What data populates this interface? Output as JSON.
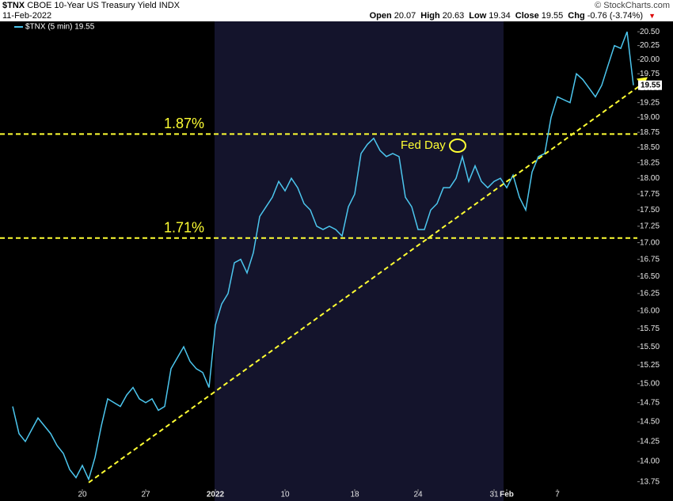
{
  "header": {
    "symbol": "$TNX",
    "name": "CBOE 10-Year US Treasury Yield INDX",
    "date": "11-Feb-2022",
    "copyright": "© StockCharts.com",
    "quote": [
      {
        "label": "Open",
        "value": "20.07"
      },
      {
        "label": "High",
        "value": "20.63"
      },
      {
        "label": "Low",
        "value": "19.34"
      },
      {
        "label": "Close",
        "value": "19.55"
      },
      {
        "label": "Chg",
        "value": "-0.76 (-3.74%)"
      }
    ]
  },
  "chart_data": {
    "type": "line",
    "categories": [
      null,
      null,
      null,
      null,
      null,
      null,
      null,
      null,
      null,
      null,
      null,
      "20",
      null,
      null,
      null,
      null,
      null,
      null,
      null,
      null,
      null,
      "27",
      null,
      null,
      null,
      null,
      null,
      null,
      null,
      null,
      null,
      null,
      "2022",
      null,
      null,
      null,
      null,
      null,
      null,
      null,
      null,
      null,
      null,
      "10",
      null,
      null,
      null,
      null,
      null,
      null,
      null,
      null,
      null,
      null,
      "18",
      null,
      null,
      null,
      null,
      null,
      null,
      null,
      null,
      null,
      "24",
      null,
      null,
      null,
      null,
      null,
      null,
      null,
      null,
      null,
      null,
      null,
      "31",
      null,
      "Feb",
      null,
      null,
      null,
      null,
      null,
      null,
      null,
      "7",
      null,
      null,
      null,
      null,
      null,
      null,
      null,
      null,
      null,
      null,
      null,
      null
    ],
    "series": [
      {
        "name": "$TNX (5 min) 19.55",
        "color": "#4cc6ee",
        "values": [
          14.7,
          14.35,
          14.25,
          14.4,
          14.55,
          14.45,
          14.35,
          14.2,
          14.1,
          13.9,
          13.8,
          13.95,
          13.78,
          14.05,
          14.45,
          14.8,
          14.75,
          14.7,
          14.85,
          14.95,
          14.8,
          14.75,
          14.8,
          14.65,
          14.7,
          15.2,
          15.35,
          15.5,
          15.3,
          15.2,
          15.15,
          14.95,
          15.8,
          16.1,
          16.25,
          16.7,
          16.75,
          16.55,
          16.85,
          17.4,
          17.55,
          17.7,
          17.95,
          17.8,
          18.0,
          17.85,
          17.6,
          17.5,
          17.25,
          17.2,
          17.25,
          17.2,
          17.1,
          17.55,
          17.75,
          18.4,
          18.55,
          18.65,
          18.45,
          18.35,
          18.4,
          18.35,
          17.7,
          17.55,
          17.2,
          17.2,
          17.5,
          17.6,
          17.85,
          17.85,
          18.0,
          18.35,
          17.95,
          18.2,
          17.95,
          17.85,
          17.95,
          18.0,
          17.85,
          18.05,
          17.7,
          17.5,
          18.1,
          18.35,
          18.4,
          19.0,
          19.35,
          19.3,
          19.25,
          19.75,
          19.65,
          19.5,
          19.35,
          19.55,
          19.9,
          20.25,
          20.2,
          20.5,
          19.55
        ]
      }
    ],
    "ylim": [
      13.66,
      20.69
    ],
    "log_scale": true,
    "yticks": [
      13.75,
      {
        "value": 14,
        "label": "14.00"
      },
      14.25,
      {
        "value": 14.5,
        "label": "14.50"
      },
      14.75,
      {
        "value": 15,
        "label": "15.00"
      },
      15.25,
      {
        "value": 15.5,
        "label": "15.50"
      },
      15.75,
      {
        "value": 16,
        "label": "16.00"
      },
      16.25,
      {
        "value": 16.5,
        "label": "16.50"
      },
      16.75,
      {
        "value": 17,
        "label": "17.00"
      },
      17.25,
      {
        "value": 17.5,
        "label": "17.50"
      },
      17.75,
      {
        "value": 18,
        "label": "18.00"
      },
      18.25,
      {
        "value": 18.5,
        "label": "18.50"
      },
      18.75,
      {
        "value": 19,
        "label": "19.00"
      },
      19.25,
      {
        "value": 19.5,
        "label": "19.50"
      },
      19.75,
      {
        "value": 20,
        "label": "20.00"
      },
      20.25,
      {
        "value": 20.5,
        "label": "20.50"
      }
    ],
    "hlines": [
      {
        "label": "1.87%",
        "value": 18.72,
        "color": "#ffff33"
      },
      {
        "label": "1.71%",
        "value": 17.07,
        "color": "#ffff33"
      }
    ],
    "trendline": {
      "start": 13.74,
      "end": 19.58,
      "color": "#ffff33"
    },
    "annotations": [
      {
        "text": "Fed Day"
      }
    ]
  }
}
